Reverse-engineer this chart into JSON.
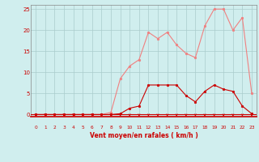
{
  "x": [
    0,
    1,
    2,
    3,
    4,
    5,
    6,
    7,
    8,
    9,
    10,
    11,
    12,
    13,
    14,
    15,
    16,
    17,
    18,
    19,
    20,
    21,
    22,
    23
  ],
  "rafales": [
    0,
    0,
    0,
    0,
    0,
    0,
    0,
    0,
    0.5,
    8.5,
    11.5,
    13,
    19.5,
    18,
    19.5,
    16.5,
    14.5,
    13.5,
    21,
    25,
    25,
    20,
    23,
    5
  ],
  "moyen": [
    0,
    0,
    0,
    0,
    0,
    0,
    0,
    0,
    0,
    0.2,
    1.5,
    2,
    7,
    7,
    7,
    7,
    4.5,
    3,
    5.5,
    7,
    6,
    5.5,
    2,
    0.2
  ],
  "bg_color": "#d0eeee",
  "grid_color": "#aacccc",
  "line_color_rafales": "#f08080",
  "line_color_moyen": "#cc0000",
  "xlabel": "Vent moyen/en rafales ( km/h )",
  "xlabel_color": "#cc0000",
  "tick_color": "#cc0000",
  "ylabel_ticks": [
    0,
    5,
    10,
    15,
    20,
    25
  ],
  "ylim": [
    -0.5,
    26
  ],
  "xlim": [
    -0.5,
    23.5
  ],
  "arrow_color": "#cc0000",
  "spine_color": "#888888"
}
